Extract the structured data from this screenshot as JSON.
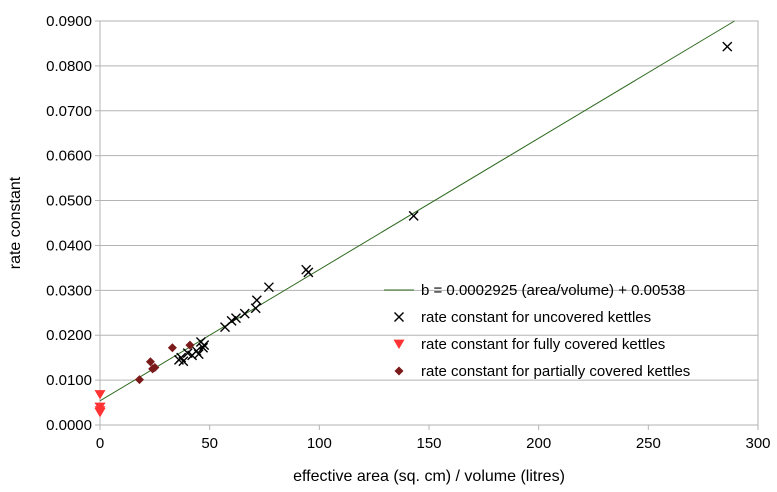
{
  "chart_data": {
    "type": "scatter",
    "xlabel": "effective area (sq. cm) / volume (litres)",
    "ylabel": "rate constant",
    "xlim": [
      0,
      300
    ],
    "ylim": [
      0,
      0.09
    ],
    "x_ticks": [
      0,
      50,
      100,
      150,
      200,
      250,
      300
    ],
    "y_ticks": [
      0,
      0.01,
      0.02,
      0.03,
      0.04,
      0.05,
      0.06,
      0.07,
      0.08,
      0.09
    ],
    "x_tick_labels": [
      "0",
      "50",
      "100",
      "150",
      "200",
      "250",
      "300"
    ],
    "y_tick_labels": [
      "0.0000",
      "0.0100",
      "0.0200",
      "0.0300",
      "0.0400",
      "0.0500",
      "0.0600",
      "0.0700",
      "0.0800",
      "0.0900"
    ],
    "grid": "horizontal",
    "legend_position": "lower-right",
    "trendline": {
      "name": "b = 0.0002925 (area/volume) + 0.00538",
      "slope": 0.0002925,
      "intercept": 0.00538,
      "color": "#2e6b1f"
    },
    "series": [
      {
        "name": "rate constant for uncovered kettles",
        "marker": "x",
        "color": "#000000",
        "points": [
          [
            36,
            0.0145
          ],
          [
            37,
            0.015
          ],
          [
            38,
            0.0142
          ],
          [
            40,
            0.016
          ],
          [
            42,
            0.0155
          ],
          [
            44,
            0.0165
          ],
          [
            45,
            0.0158
          ],
          [
            46,
            0.0185
          ],
          [
            47,
            0.0172
          ],
          [
            47.5,
            0.0178
          ],
          [
            57,
            0.0218
          ],
          [
            60,
            0.0232
          ],
          [
            62,
            0.0238
          ],
          [
            66,
            0.0248
          ],
          [
            71,
            0.026
          ],
          [
            71.5,
            0.0278
          ],
          [
            77,
            0.0307
          ],
          [
            94,
            0.0346
          ],
          [
            95,
            0.034
          ],
          [
            143,
            0.0466
          ],
          [
            286,
            0.0843
          ]
        ]
      },
      {
        "name": "rate constant for fully covered kettles",
        "marker": "triangle-down",
        "color": "#ff3333",
        "points": [
          [
            0,
            0.0068
          ],
          [
            0,
            0.004
          ],
          [
            0,
            0.0032
          ],
          [
            0,
            0.0028
          ]
        ]
      },
      {
        "name": "rate constant for partially covered kettles",
        "marker": "diamond",
        "color": "#7b1a1a",
        "points": [
          [
            18,
            0.0101
          ],
          [
            23,
            0.0141
          ],
          [
            24,
            0.0125
          ],
          [
            25,
            0.0128
          ],
          [
            33,
            0.0172
          ],
          [
            41,
            0.0178
          ]
        ]
      }
    ]
  }
}
